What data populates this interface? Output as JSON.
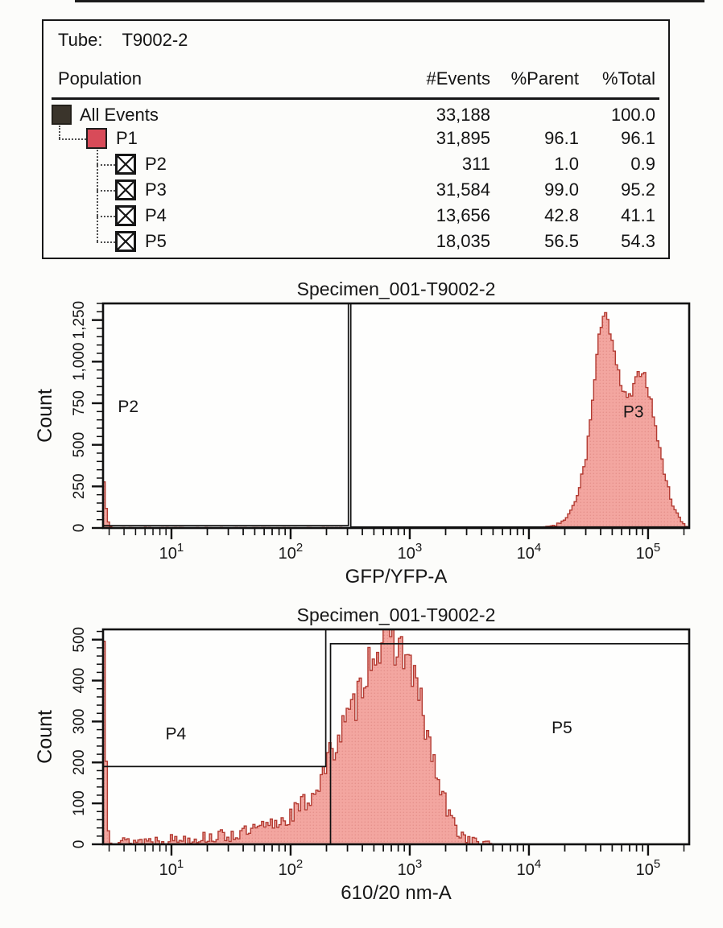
{
  "population_table": {
    "tube_label": "Tube:",
    "tube_value": "T9002-2",
    "columns": [
      "Population",
      "#Events",
      "%Parent",
      "%Total"
    ],
    "rows": [
      {
        "name": "All Events",
        "icon": "solid-dark",
        "indent": 0,
        "events": "33,188",
        "parent": "",
        "total": "100.0"
      },
      {
        "name": "P1",
        "icon": "solid-red",
        "indent": 1,
        "events": "31,895",
        "parent": "96.1",
        "total": "96.1"
      },
      {
        "name": "P2",
        "icon": "crossed-box",
        "indent": 2,
        "events": "311",
        "parent": "1.0",
        "total": "0.9"
      },
      {
        "name": "P3",
        "icon": "crossed-box",
        "indent": 2,
        "events": "31,584",
        "parent": "99.0",
        "total": "95.2"
      },
      {
        "name": "P4",
        "icon": "crossed-box",
        "indent": 2,
        "events": "13,656",
        "parent": "42.8",
        "total": "41.1"
      },
      {
        "name": "P5",
        "icon": "crossed-box",
        "indent": 2,
        "events": "18,035",
        "parent": "56.5",
        "total": "54.3"
      }
    ],
    "colors": {
      "all_events_icon": "#3a342b",
      "p1_icon": "#d84b59",
      "tree_line": "#4d4d4d"
    }
  },
  "chart_data": [
    {
      "type": "area",
      "title": "Specimen_001-T9002-2",
      "xlabel": "GFP/YFP-A",
      "ylabel": "Count",
      "x_scale": "log10",
      "x_range_log10": [
        0.426,
        5.345
      ],
      "x_decades": [
        1,
        2,
        3,
        4,
        5
      ],
      "ylim": [
        0,
        1350
      ],
      "y_major_ticks": [
        0,
        250,
        500,
        750,
        1000,
        1250
      ],
      "y_tick_labels": [
        "0",
        "250",
        "500",
        "750",
        "1,000",
        "1,250"
      ],
      "y_minor_step": 50,
      "grid": false,
      "fill": "#F3A6A0",
      "fill_dot": "#E6918B",
      "stroke": "#B23A31",
      "noise": {
        "seed": 7,
        "a": 1.5,
        "b": 1.1
      },
      "profile_log10x_count": [
        [
          0.426,
          310
        ],
        [
          0.44,
          290
        ],
        [
          0.455,
          110
        ],
        [
          0.475,
          12
        ],
        [
          0.5,
          2
        ],
        [
          1.5,
          1
        ],
        [
          3.0,
          1
        ],
        [
          4.0,
          2
        ],
        [
          4.12,
          4
        ],
        [
          4.22,
          12
        ],
        [
          4.32,
          60
        ],
        [
          4.4,
          170
        ],
        [
          4.48,
          430
        ],
        [
          4.54,
          800
        ],
        [
          4.58,
          1080
        ],
        [
          4.61,
          1250
        ],
        [
          4.635,
          1340
        ],
        [
          4.66,
          1260
        ],
        [
          4.7,
          1090
        ],
        [
          4.75,
          930
        ],
        [
          4.79,
          820
        ],
        [
          4.82,
          770
        ],
        [
          4.86,
          800
        ],
        [
          4.9,
          880
        ],
        [
          4.93,
          945
        ],
        [
          4.955,
          950
        ],
        [
          4.98,
          900
        ],
        [
          5.01,
          810
        ],
        [
          5.05,
          660
        ],
        [
          5.09,
          500
        ],
        [
          5.13,
          360
        ],
        [
          5.17,
          235
        ],
        [
          5.21,
          140
        ],
        [
          5.25,
          75
        ],
        [
          5.29,
          32
        ],
        [
          5.32,
          12
        ],
        [
          5.345,
          4
        ]
      ],
      "gates": [
        {
          "name": "P2",
          "x1": "min",
          "x2": 2.485,
          "y1": 14,
          "y2": "max",
          "label_log10x": 0.55,
          "label_y": 730
        },
        {
          "name": "P3",
          "x1": 2.505,
          "x2": "max",
          "y1": 6,
          "y2": "max",
          "label_log10x": 4.79,
          "label_y": 700
        }
      ]
    },
    {
      "type": "area",
      "title": "Specimen_001-T9002-2",
      "xlabel": "610/20 nm-A",
      "ylabel": "Count",
      "x_scale": "log10",
      "x_range_log10": [
        0.426,
        5.345
      ],
      "x_decades": [
        1,
        2,
        3,
        4,
        5
      ],
      "ylim": [
        0,
        525
      ],
      "y_major_ticks": [
        0,
        100,
        200,
        300,
        400,
        500
      ],
      "y_tick_labels": [
        "0",
        "100",
        "200",
        "300",
        "400",
        "500"
      ],
      "y_minor_step": 20,
      "grid": false,
      "fill": "#F3A6A0",
      "fill_dot": "#E6918B",
      "stroke": "#B23A31",
      "noise": {
        "seed": 13,
        "a": 6,
        "b": 2.2
      },
      "profile_log10x_count": [
        [
          0.426,
          505
        ],
        [
          0.44,
          480
        ],
        [
          0.455,
          180
        ],
        [
          0.475,
          25
        ],
        [
          0.5,
          10
        ],
        [
          0.6,
          7
        ],
        [
          0.75,
          9
        ],
        [
          0.9,
          11
        ],
        [
          1.05,
          13
        ],
        [
          1.2,
          15
        ],
        [
          1.35,
          18
        ],
        [
          1.5,
          22
        ],
        [
          1.65,
          30
        ],
        [
          1.8,
          42
        ],
        [
          1.95,
          62
        ],
        [
          2.05,
          82
        ],
        [
          2.15,
          110
        ],
        [
          2.22,
          140
        ],
        [
          2.28,
          175
        ],
        [
          2.32,
          205
        ],
        [
          2.38,
          255
        ],
        [
          2.44,
          285
        ],
        [
          2.5,
          310
        ],
        [
          2.56,
          355
        ],
        [
          2.62,
          420
        ],
        [
          2.68,
          465
        ],
        [
          2.74,
          485
        ],
        [
          2.8,
          498
        ],
        [
          2.86,
          495
        ],
        [
          2.92,
          482
        ],
        [
          2.98,
          455
        ],
        [
          3.04,
          405
        ],
        [
          3.1,
          330
        ],
        [
          3.16,
          250
        ],
        [
          3.22,
          175
        ],
        [
          3.28,
          112
        ],
        [
          3.34,
          65
        ],
        [
          3.4,
          35
        ],
        [
          3.46,
          18
        ],
        [
          3.52,
          9
        ],
        [
          3.58,
          4
        ],
        [
          3.64,
          1
        ],
        [
          3.72,
          0
        ],
        [
          5.345,
          0
        ]
      ],
      "gates": [
        {
          "name": "P4",
          "x1": "min",
          "x2": 2.295,
          "y1": 190,
          "y2": "max",
          "label_log10x": 0.95,
          "label_y": 270
        },
        {
          "name": "P5",
          "x1": 2.335,
          "x2": "max",
          "y1": 0,
          "y2": 490,
          "label_log10x": 4.19,
          "label_y": 285
        }
      ]
    }
  ]
}
